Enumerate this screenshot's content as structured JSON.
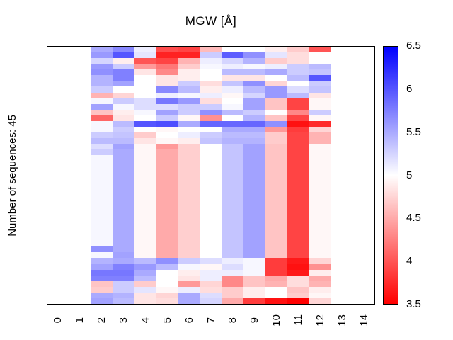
{
  "title": "MGW [Å]",
  "y_axis_label": "Number of sequences: 45",
  "x_axis": {
    "tick_labels": [
      "0",
      "1",
      "2",
      "3",
      "4",
      "5",
      "6",
      "7",
      "8",
      "9",
      "10",
      "11",
      "12",
      "13",
      "14"
    ]
  },
  "colorbar": {
    "min": 3.5,
    "max": 6.5,
    "tick_labels": [
      "6.5",
      "6",
      "5.5",
      "5",
      "4.5",
      "4",
      "3.5"
    ],
    "color_low": "#ff0000",
    "color_mid": "#ffffff",
    "color_high": "#0000ff"
  },
  "chart_data": {
    "type": "heatmap",
    "title": "MGW [Å]",
    "ylabel": "Number of sequences: 45",
    "n_rows": 45,
    "n_cols_axis": 15,
    "data_col_start": 2,
    "value_range": [
      3.5,
      6.5
    ],
    "legend_position": "right",
    "grid": false,
    "columns": [
      2,
      3,
      4,
      5,
      6,
      7,
      8,
      9,
      10,
      11,
      12
    ],
    "values": [
      [
        5.5,
        5.7,
        5.1,
        3.95,
        3.9,
        4.6,
        5.0,
        5.0,
        4.9,
        4.7,
        4.0
      ],
      [
        5.6,
        6.0,
        5.15,
        3.7,
        3.7,
        5.3,
        5.95,
        5.65,
        5.15,
        4.8,
        5.0
      ],
      [
        5.25,
        4.9,
        4.0,
        3.9,
        4.55,
        5.1,
        5.25,
        5.45,
        4.7,
        4.8,
        5.0
      ],
      [
        5.6,
        5.3,
        4.4,
        4.2,
        4.7,
        5.05,
        5.1,
        5.05,
        5.1,
        5.3,
        5.4
      ],
      [
        5.65,
        5.75,
        4.85,
        4.3,
        4.9,
        5.0,
        5.4,
        5.4,
        5.5,
        5.3,
        5.35
      ],
      [
        5.45,
        5.75,
        5.0,
        4.85,
        4.9,
        5.0,
        4.85,
        4.85,
        5.0,
        5.4,
        6.0
      ],
      [
        5.45,
        5.55,
        5.0,
        4.85,
        5.3,
        4.8,
        5.35,
        5.65,
        4.75,
        5.0,
        5.3
      ],
      [
        5.3,
        5.0,
        5.0,
        5.7,
        5.4,
        4.9,
        5.1,
        5.4,
        5.6,
        5.2,
        5.35
      ],
      [
        4.55,
        4.75,
        5.0,
        5.1,
        5.05,
        5.1,
        4.95,
        5.25,
        5.6,
        5.4,
        4.85
      ],
      [
        5.05,
        5.3,
        5.2,
        5.8,
        5.6,
        4.8,
        5.0,
        5.55,
        4.65,
        3.9,
        4.95
      ],
      [
        5.55,
        5.05,
        5.2,
        5.2,
        5.3,
        5.3,
        5.05,
        5.55,
        4.65,
        3.9,
        4.95
      ],
      [
        4.65,
        4.9,
        5.05,
        5.55,
        5.3,
        5.65,
        5.4,
        5.3,
        5.0,
        4.3,
        5.3
      ],
      [
        4.1,
        4.85,
        5.0,
        5.3,
        4.95,
        4.35,
        5.0,
        5.45,
        4.65,
        3.9,
        4.95
      ],
      [
        5.05,
        5.4,
        6.0,
        6.05,
        5.5,
        5.9,
        5.9,
        5.9,
        5.65,
        3.6,
        3.75
      ],
      [
        5.05,
        5.3,
        5.0,
        4.95,
        5.0,
        5.0,
        5.5,
        5.5,
        4.4,
        3.85,
        4.75
      ],
      [
        5.3,
        5.35,
        4.7,
        5.0,
        5.1,
        5.3,
        5.4,
        5.4,
        4.7,
        3.9,
        4.55
      ],
      [
        5.4,
        5.4,
        4.85,
        4.95,
        4.9,
        5.35,
        5.45,
        5.45,
        4.7,
        3.9,
        4.55
      ],
      [
        5.2,
        5.55,
        4.95,
        4.4,
        4.72,
        5.0,
        5.35,
        5.55,
        4.65,
        3.9,
        4.95
      ],
      [
        5.3,
        5.5,
        4.95,
        4.5,
        4.72,
        5.0,
        5.35,
        5.55,
        4.65,
        3.9,
        4.95
      ],
      [
        5.05,
        5.5,
        4.95,
        4.5,
        4.72,
        5.0,
        5.35,
        5.55,
        4.65,
        3.9,
        4.95
      ],
      [
        5.05,
        5.5,
        4.95,
        4.5,
        4.72,
        5.0,
        5.35,
        5.55,
        4.65,
        3.9,
        4.95
      ],
      [
        5.05,
        5.5,
        4.95,
        4.5,
        4.72,
        5.0,
        5.35,
        5.55,
        4.65,
        3.9,
        4.95
      ],
      [
        5.05,
        5.5,
        4.95,
        4.5,
        4.72,
        5.0,
        5.35,
        5.55,
        4.65,
        3.9,
        4.95
      ],
      [
        5.05,
        5.5,
        4.95,
        4.5,
        4.72,
        5.0,
        5.35,
        5.55,
        4.65,
        3.9,
        4.95
      ],
      [
        5.05,
        5.5,
        4.95,
        4.5,
        4.72,
        5.0,
        5.35,
        5.55,
        4.65,
        3.9,
        4.95
      ],
      [
        5.05,
        5.5,
        4.95,
        4.5,
        4.72,
        5.0,
        5.35,
        5.55,
        4.65,
        3.9,
        4.95
      ],
      [
        5.05,
        5.5,
        4.95,
        4.5,
        4.72,
        5.0,
        5.35,
        5.55,
        4.65,
        3.9,
        4.95
      ],
      [
        5.05,
        5.5,
        4.95,
        4.5,
        4.72,
        5.0,
        5.35,
        5.55,
        4.65,
        3.9,
        4.95
      ],
      [
        5.05,
        5.5,
        4.95,
        4.5,
        4.72,
        5.0,
        5.35,
        5.55,
        4.65,
        3.9,
        4.95
      ],
      [
        5.05,
        5.5,
        4.95,
        4.5,
        4.72,
        5.0,
        5.35,
        5.55,
        4.65,
        3.9,
        4.95
      ],
      [
        5.05,
        5.5,
        4.95,
        4.5,
        4.72,
        5.0,
        5.35,
        5.55,
        4.65,
        3.9,
        4.95
      ],
      [
        5.05,
        5.5,
        4.95,
        4.5,
        4.72,
        5.0,
        5.35,
        5.55,
        4.65,
        3.9,
        4.95
      ],
      [
        5.05,
        5.5,
        4.95,
        4.5,
        4.72,
        5.0,
        5.35,
        5.55,
        4.65,
        3.9,
        4.95
      ],
      [
        5.05,
        5.5,
        4.95,
        4.5,
        4.72,
        5.0,
        5.35,
        5.55,
        4.65,
        3.9,
        4.95
      ],
      [
        5.05,
        5.5,
        4.95,
        4.5,
        4.72,
        5.0,
        5.35,
        5.55,
        4.65,
        3.9,
        4.95
      ],
      [
        5.65,
        5.5,
        4.95,
        4.5,
        4.72,
        5.0,
        5.35,
        5.55,
        4.65,
        3.9,
        4.95
      ],
      [
        5.05,
        5.55,
        4.95,
        4.5,
        4.72,
        5.0,
        5.35,
        5.55,
        4.65,
        3.9,
        4.95
      ],
      [
        5.45,
        5.5,
        5.4,
        5.65,
        5.3,
        5.2,
        5.1,
        5.05,
        3.85,
        3.65,
        4.75
      ],
      [
        5.55,
        5.75,
        5.6,
        5.4,
        5.05,
        4.95,
        5.2,
        5.05,
        3.85,
        3.6,
        4.35
      ],
      [
        5.8,
        5.8,
        5.5,
        5.0,
        4.9,
        5.1,
        5.1,
        5.05,
        3.85,
        3.65,
        4.9
      ],
      [
        5.75,
        5.75,
        5.4,
        5.0,
        4.85,
        5.1,
        4.3,
        4.65,
        4.5,
        4.8,
        4.5
      ],
      [
        4.65,
        5.3,
        4.7,
        5.0,
        4.4,
        4.75,
        4.3,
        4.65,
        4.55,
        4.8,
        4.55
      ],
      [
        4.7,
        5.3,
        5.15,
        4.95,
        5.1,
        4.8,
        4.7,
        4.9,
        5.0,
        4.65,
        4.9
      ],
      [
        5.5,
        5.45,
        4.85,
        4.75,
        5.5,
        5.2,
        4.7,
        4.9,
        5.0,
        4.7,
        4.95
      ],
      [
        5.55,
        5.4,
        4.85,
        4.8,
        5.5,
        5.25,
        4.5,
        3.85,
        3.6,
        3.5,
        4.75
      ]
    ]
  }
}
